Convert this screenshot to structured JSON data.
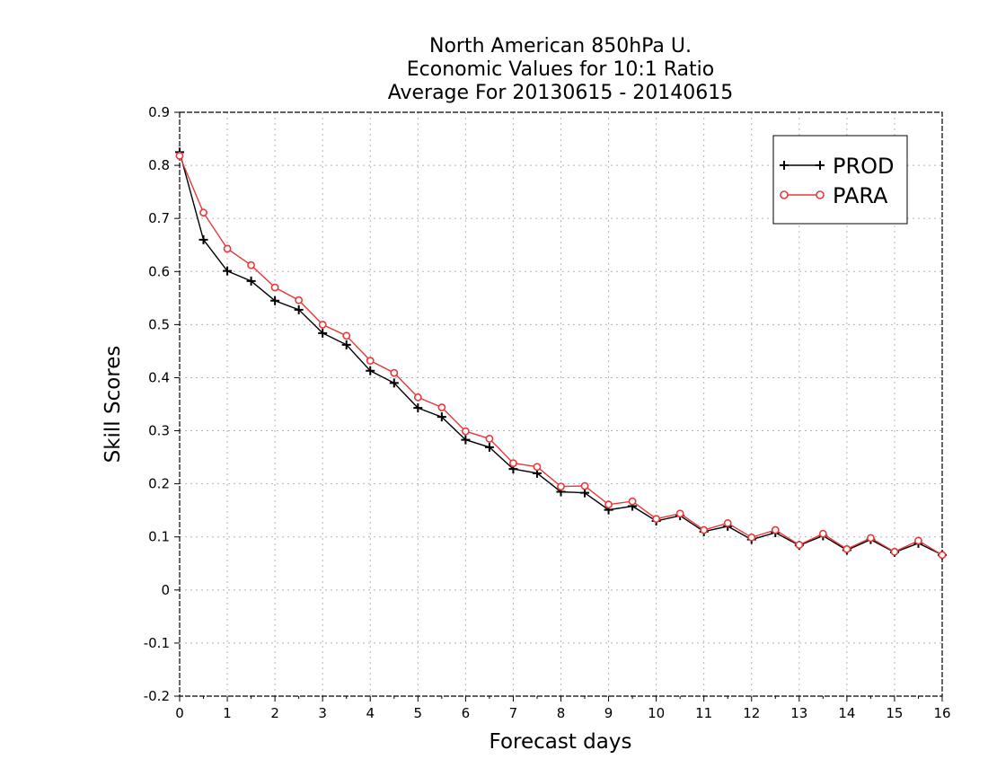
{
  "chart_data": {
    "type": "line",
    "title": [
      "North American 850hPa U.",
      "Economic Values for 10:1 Ratio",
      "Average For 20130615 - 20140615"
    ],
    "xlabel": "Forecast days",
    "ylabel": "Skill Scores",
    "xlim": [
      0,
      16
    ],
    "ylim": [
      -0.2,
      0.9
    ],
    "xticks": [
      "0",
      "1",
      "2",
      "3",
      "4",
      "5",
      "6",
      "7",
      "8",
      "9",
      "10",
      "11",
      "12",
      "13",
      "14",
      "15",
      "16"
    ],
    "yticks": [
      "-0.2",
      "-0.1",
      "0",
      "0.1",
      "0.2",
      "0.3",
      "0.4",
      "0.5",
      "0.6",
      "0.7",
      "0.8",
      "0.9"
    ],
    "grid": true,
    "legend_position": "top-right",
    "x": [
      0,
      0.5,
      1,
      1.5,
      2,
      2.5,
      3,
      3.5,
      4,
      4.5,
      5,
      5.5,
      6,
      6.5,
      7,
      7.5,
      8,
      8.5,
      9,
      9.5,
      10,
      10.5,
      11,
      11.5,
      12,
      12.5,
      13,
      13.5,
      14,
      14.5,
      15,
      15.5,
      16
    ],
    "series": [
      {
        "name": "PROD",
        "color": "#000000",
        "marker": "plus",
        "values": [
          0.825,
          0.66,
          0.601,
          0.582,
          0.545,
          0.528,
          0.484,
          0.462,
          0.413,
          0.39,
          0.343,
          0.326,
          0.283,
          0.269,
          0.228,
          0.22,
          0.185,
          0.183,
          0.151,
          0.158,
          0.13,
          0.14,
          0.11,
          0.12,
          0.095,
          0.108,
          0.084,
          0.102,
          0.075,
          0.095,
          0.071,
          0.088,
          0.066
        ]
      },
      {
        "name": "PARA",
        "color": "#e8393a",
        "marker": "circle",
        "values": [
          0.818,
          0.711,
          0.643,
          0.612,
          0.57,
          0.546,
          0.5,
          0.479,
          0.432,
          0.409,
          0.363,
          0.344,
          0.299,
          0.285,
          0.239,
          0.232,
          0.195,
          0.196,
          0.161,
          0.167,
          0.134,
          0.144,
          0.113,
          0.126,
          0.099,
          0.113,
          0.085,
          0.106,
          0.077,
          0.098,
          0.072,
          0.093,
          0.066
        ]
      }
    ]
  }
}
